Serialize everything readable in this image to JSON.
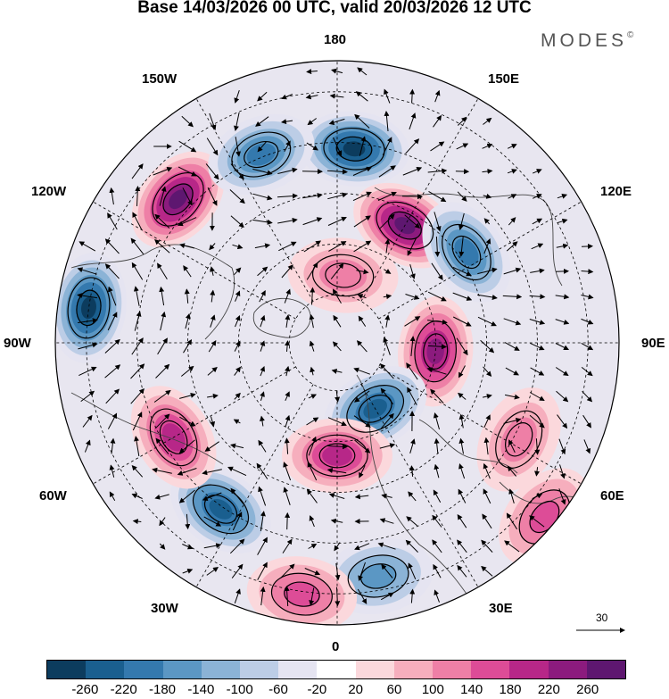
{
  "title": "Base 14/03/2026 00 UTC, valid 20/03/2026 12 UTC",
  "brand": {
    "name": "MODES",
    "mark": "©"
  },
  "longitude_labels": {
    "n180": "180",
    "w150": "150W",
    "e150": "150E",
    "w120": "120W",
    "e120": "120E",
    "w90": "90W",
    "e90": "90E",
    "w60": "60W",
    "e60": "60E",
    "w30": "30W",
    "e30": "30E",
    "s0": "0"
  },
  "vector_scale": {
    "value": "30"
  },
  "colorbar": {
    "colors": [
      "#0c3c5e",
      "#1a5f8f",
      "#3479ae",
      "#5b97c4",
      "#8bb3d6",
      "#bccde6",
      "#e5e4f1",
      "#ffffff",
      "#fbd8dc",
      "#f6aebd",
      "#ee7fa6",
      "#dd4c97",
      "#b72788",
      "#8c1b7e",
      "#5e1770"
    ],
    "ticks": [
      "-260",
      "-220",
      "-180",
      "-140",
      "-100",
      "-60",
      "-20",
      "20",
      "60",
      "100",
      "140",
      "180",
      "220",
      "260"
    ]
  },
  "anomaly_centers": [
    {
      "lon": 175,
      "r": 0.69,
      "value": -260
    },
    {
      "lon": 150,
      "r": 0.48,
      "value": 260
    },
    {
      "lon": 125,
      "r": 0.56,
      "value": -200
    },
    {
      "lon": 85,
      "r": 0.35,
      "value": 220
    },
    {
      "lon": 30,
      "r": 0.27,
      "value": -220
    },
    {
      "lon": 0,
      "r": 0.4,
      "value": 180
    },
    {
      "lon": -35,
      "r": 0.72,
      "value": -220
    },
    {
      "lon": -60,
      "r": 0.67,
      "value": 200
    },
    {
      "lon": -98,
      "r": 0.89,
      "value": -260
    },
    {
      "lon": -132,
      "r": 0.76,
      "value": 260
    },
    {
      "lon": -158,
      "r": 0.72,
      "value": -200
    },
    {
      "lon": 175,
      "r": 0.24,
      "value": 120
    },
    {
      "lon": 10,
      "r": 0.84,
      "value": -140
    },
    {
      "lon": 50,
      "r": 0.96,
      "value": 140
    },
    {
      "lon": 62,
      "r": 0.73,
      "value": 120
    },
    {
      "lon": -8,
      "r": 0.9,
      "value": 160
    }
  ]
}
